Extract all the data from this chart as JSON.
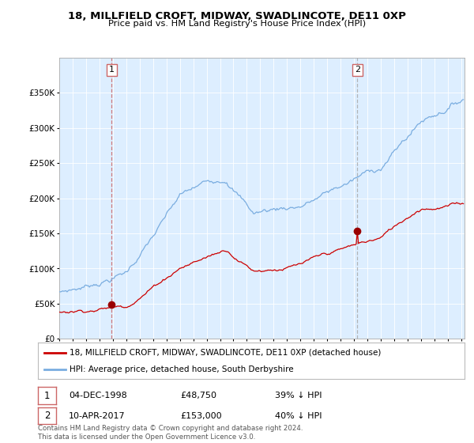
{
  "title_line1": "18, MILLFIELD CROFT, MIDWAY, SWADLINCOTE, DE11 0XP",
  "title_line2": "Price paid vs. HM Land Registry's House Price Index (HPI)",
  "legend_label1": "18, MILLFIELD CROFT, MIDWAY, SWADLINCOTE, DE11 0XP (detached house)",
  "legend_label2": "HPI: Average price, detached house, South Derbyshire",
  "point1_date": "04-DEC-1998",
  "point1_price": "£48,750",
  "point1_hpi": "39% ↓ HPI",
  "point2_date": "10-APR-2017",
  "point2_price": "£153,000",
  "point2_hpi": "40% ↓ HPI",
  "footnote": "Contains HM Land Registry data © Crown copyright and database right 2024.\nThis data is licensed under the Open Government Licence v3.0.",
  "property_color": "#cc0000",
  "hpi_color": "#7aade0",
  "vline1_color": "#cc6666",
  "vline2_color": "#aaaaaa",
  "point_marker_color": "#990000",
  "ylim": [
    0,
    400000
  ],
  "background_color": "#ffffff",
  "plot_bg_color": "#ddeeff",
  "grid_color": "#ffffff"
}
